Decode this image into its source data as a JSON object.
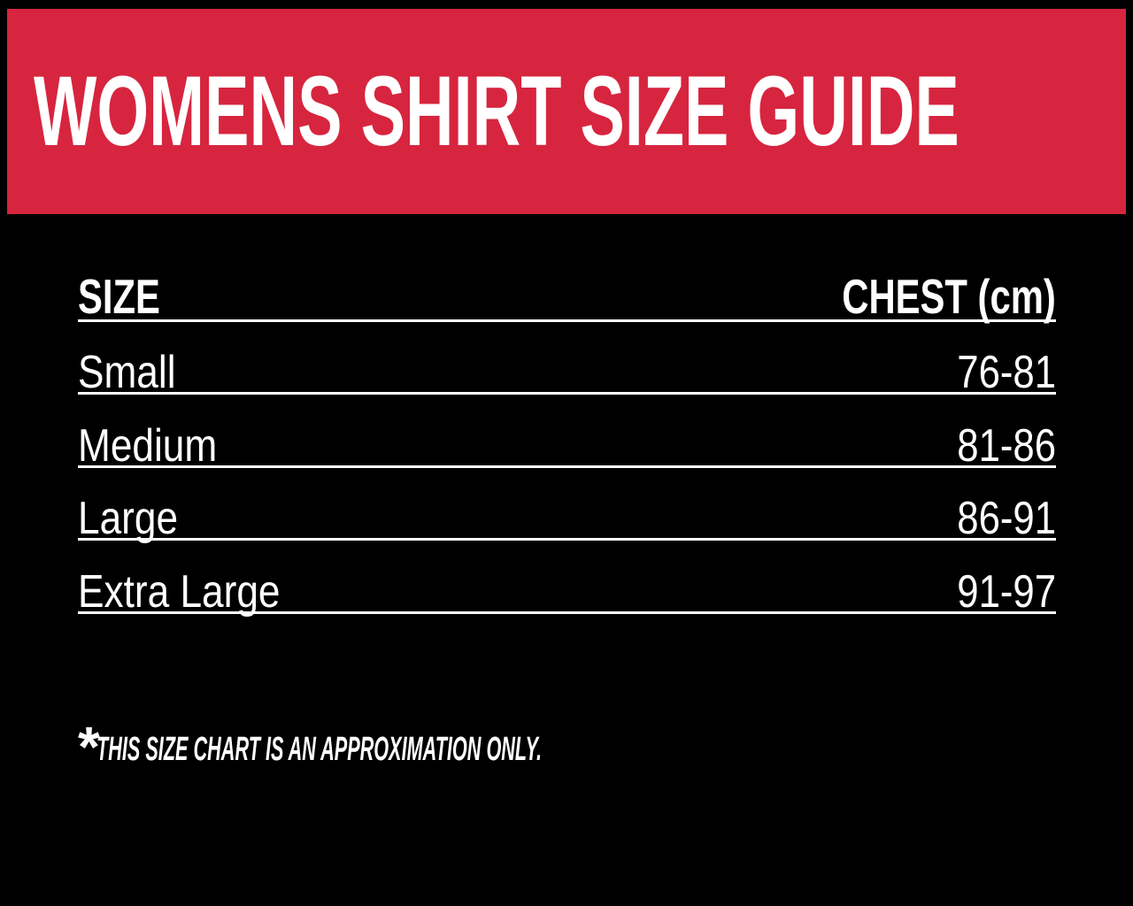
{
  "banner": {
    "title": "WOMENS SHIRT SIZE GUIDE"
  },
  "table": {
    "header": {
      "size_label": "SIZE",
      "chest_label": "CHEST (cm)"
    },
    "rows": [
      {
        "size": "Small",
        "chest": "76-81"
      },
      {
        "size": "Medium",
        "chest": "81-86"
      },
      {
        "size": "Large",
        "chest": "86-91"
      },
      {
        "size": "Extra Large",
        "chest": "91-97"
      }
    ]
  },
  "footnote": {
    "marker": "*",
    "text": "THIS SIZE CHART IS AN APPROXIMATION ONLY."
  },
  "colors": {
    "page_background": "#000000",
    "banner_background": "#D7253F",
    "text": "#FFFFFF",
    "divider": "#FFFFFF"
  }
}
